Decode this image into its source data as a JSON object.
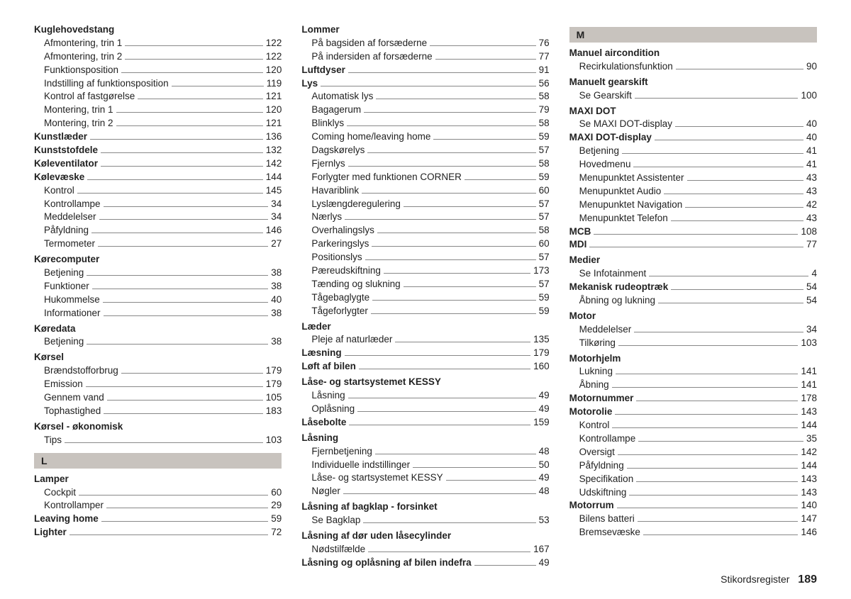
{
  "footer": {
    "title": "Stikordsregister",
    "page": "189"
  },
  "columns": [
    [
      {
        "type": "heading",
        "text": "Kuglehovedstang"
      },
      {
        "type": "sub",
        "label": "Afmontering, trin 1",
        "page": "122"
      },
      {
        "type": "sub",
        "label": "Afmontering, trin 2",
        "page": "122"
      },
      {
        "type": "sub",
        "label": "Funktionsposition",
        "page": "120"
      },
      {
        "type": "sub",
        "label": "Indstilling af funktionsposition",
        "page": "119"
      },
      {
        "type": "sub",
        "label": "Kontrol af fastgørelse",
        "page": "121"
      },
      {
        "type": "sub",
        "label": "Montering, trin 1",
        "page": "120"
      },
      {
        "type": "sub",
        "label": "Montering, trin 2",
        "page": "121"
      },
      {
        "type": "bold",
        "label": "Kunstlæder",
        "page": "136"
      },
      {
        "type": "bold",
        "label": "Kunststofdele",
        "page": "132"
      },
      {
        "type": "bold",
        "label": "Køleventilator",
        "page": "142"
      },
      {
        "type": "bold",
        "label": "Kølevæske",
        "page": "144"
      },
      {
        "type": "sub",
        "label": "Kontrol",
        "page": "145"
      },
      {
        "type": "sub",
        "label": "Kontrollampe",
        "page": "34"
      },
      {
        "type": "sub",
        "label": "Meddelelser",
        "page": "34"
      },
      {
        "type": "sub",
        "label": "Påfyldning",
        "page": "146"
      },
      {
        "type": "sub",
        "label": "Termometer",
        "page": "27"
      },
      {
        "type": "heading",
        "text": "Kørecomputer"
      },
      {
        "type": "sub",
        "label": "Betjening",
        "page": "38"
      },
      {
        "type": "sub",
        "label": "Funktioner",
        "page": "38"
      },
      {
        "type": "sub",
        "label": "Hukommelse",
        "page": "40"
      },
      {
        "type": "sub",
        "label": "Informationer",
        "page": "38"
      },
      {
        "type": "heading",
        "text": "Køredata"
      },
      {
        "type": "sub",
        "label": "Betjening",
        "page": "38"
      },
      {
        "type": "heading",
        "text": "Kørsel"
      },
      {
        "type": "sub",
        "label": "Brændstofforbrug",
        "page": "179"
      },
      {
        "type": "sub",
        "label": "Emission",
        "page": "179"
      },
      {
        "type": "sub",
        "label": "Gennem vand",
        "page": "105"
      },
      {
        "type": "sub",
        "label": "Tophastighed",
        "page": "183"
      },
      {
        "type": "heading",
        "text": "Kørsel - økonomisk"
      },
      {
        "type": "sub",
        "label": "Tips",
        "page": "103"
      },
      {
        "type": "letter",
        "text": "L"
      },
      {
        "type": "heading",
        "text": "Lamper"
      },
      {
        "type": "sub",
        "label": "Cockpit",
        "page": "60"
      },
      {
        "type": "sub",
        "label": "Kontrollamper",
        "page": "29"
      },
      {
        "type": "bold",
        "label": "Leaving home",
        "page": "59"
      },
      {
        "type": "bold",
        "label": "Lighter",
        "page": "72"
      }
    ],
    [
      {
        "type": "heading",
        "text": "Lommer"
      },
      {
        "type": "sub",
        "label": "På bagsiden af forsæderne",
        "page": "76"
      },
      {
        "type": "sub",
        "label": "På indersiden af forsæderne",
        "page": "77"
      },
      {
        "type": "bold",
        "label": "Luftdyser",
        "page": "91"
      },
      {
        "type": "bold",
        "label": "Lys",
        "page": "56"
      },
      {
        "type": "sub",
        "label": "Automatisk lys",
        "page": "58"
      },
      {
        "type": "sub",
        "label": "Bagagerum",
        "page": "79"
      },
      {
        "type": "sub",
        "label": "Blinklys",
        "page": "58"
      },
      {
        "type": "sub",
        "label": "Coming home/leaving home",
        "page": "59"
      },
      {
        "type": "sub",
        "label": "Dagskørelys",
        "page": "57"
      },
      {
        "type": "sub",
        "label": "Fjernlys",
        "page": "58"
      },
      {
        "type": "sub",
        "label": "Forlygter med funktionen CORNER",
        "page": "59"
      },
      {
        "type": "sub",
        "label": "Havariblink",
        "page": "60"
      },
      {
        "type": "sub",
        "label": "Lyslængderegulering",
        "page": "57"
      },
      {
        "type": "sub",
        "label": "Nærlys",
        "page": "57"
      },
      {
        "type": "sub",
        "label": "Overhalingslys",
        "page": "58"
      },
      {
        "type": "sub",
        "label": "Parkeringslys",
        "page": "60"
      },
      {
        "type": "sub",
        "label": "Positionslys",
        "page": "57"
      },
      {
        "type": "sub",
        "label": "Pæreudskiftning",
        "page": "173"
      },
      {
        "type": "sub",
        "label": "Tænding og slukning",
        "page": "57"
      },
      {
        "type": "sub",
        "label": "Tågebaglygte",
        "page": "59"
      },
      {
        "type": "sub",
        "label": "Tågeforlygter",
        "page": "59"
      },
      {
        "type": "heading",
        "text": "Læder"
      },
      {
        "type": "sub",
        "label": "Pleje af naturlæder",
        "page": "135"
      },
      {
        "type": "bold",
        "label": "Læsning",
        "page": "179"
      },
      {
        "type": "bold",
        "label": "Løft af bilen",
        "page": "160"
      },
      {
        "type": "heading",
        "text": "Låse- og startsystemet KESSY"
      },
      {
        "type": "sub",
        "label": "Låsning",
        "page": "49"
      },
      {
        "type": "sub",
        "label": "Oplåsning",
        "page": "49"
      },
      {
        "type": "bold",
        "label": "Låsebolte",
        "page": "159"
      },
      {
        "type": "heading",
        "text": "Låsning"
      },
      {
        "type": "sub",
        "label": "Fjernbetjening",
        "page": "48"
      },
      {
        "type": "sub",
        "label": "Individuelle indstillinger",
        "page": "50"
      },
      {
        "type": "sub",
        "label": "Låse- og startsystemet KESSY",
        "page": "49"
      },
      {
        "type": "sub",
        "label": "Nøgler",
        "page": "48"
      },
      {
        "type": "heading",
        "text": "Låsning af bagklap - forsinket"
      },
      {
        "type": "sub",
        "label": "Se Bagklap",
        "page": "53"
      },
      {
        "type": "heading",
        "text": "Låsning af dør uden låsecylinder"
      },
      {
        "type": "sub",
        "label": "Nødstilfælde",
        "page": "167"
      },
      {
        "type": "bold",
        "label": "Låsning og oplåsning af bilen indefra",
        "page": "49"
      }
    ],
    [
      {
        "type": "letter",
        "text": "M"
      },
      {
        "type": "heading",
        "text": "Manuel aircondition"
      },
      {
        "type": "sub",
        "label": "Recirkulationsfunktion",
        "page": "90"
      },
      {
        "type": "heading",
        "text": "Manuelt gearskift"
      },
      {
        "type": "sub",
        "label": "Se Gearskift",
        "page": "100"
      },
      {
        "type": "heading",
        "text": "MAXI DOT"
      },
      {
        "type": "sub",
        "label": "Se MAXI DOT-display",
        "page": "40"
      },
      {
        "type": "bold",
        "label": "MAXI DOT-display",
        "page": "40"
      },
      {
        "type": "sub",
        "label": "Betjening",
        "page": "41"
      },
      {
        "type": "sub",
        "label": "Hovedmenu",
        "page": "41"
      },
      {
        "type": "sub",
        "label": "Menupunktet Assistenter",
        "page": "43"
      },
      {
        "type": "sub",
        "label": "Menupunktet Audio",
        "page": "43"
      },
      {
        "type": "sub",
        "label": "Menupunktet Navigation",
        "page": "42"
      },
      {
        "type": "sub",
        "label": "Menupunktet Telefon",
        "page": "43"
      },
      {
        "type": "bold",
        "label": "MCB",
        "page": "108"
      },
      {
        "type": "bold",
        "label": "MDI",
        "page": "77"
      },
      {
        "type": "heading",
        "text": "Medier"
      },
      {
        "type": "sub",
        "label": "Se Infotainment",
        "page": "4"
      },
      {
        "type": "bold",
        "label": "Mekanisk rudeoptræk",
        "page": "54"
      },
      {
        "type": "sub",
        "label": "Åbning og lukning",
        "page": "54"
      },
      {
        "type": "heading",
        "text": "Motor"
      },
      {
        "type": "sub",
        "label": "Meddelelser",
        "page": "34"
      },
      {
        "type": "sub",
        "label": "Tilkøring",
        "page": "103"
      },
      {
        "type": "heading",
        "text": "Motorhjelm"
      },
      {
        "type": "sub",
        "label": "Lukning",
        "page": "141"
      },
      {
        "type": "sub",
        "label": "Åbning",
        "page": "141"
      },
      {
        "type": "bold",
        "label": "Motornummer",
        "page": "178"
      },
      {
        "type": "bold",
        "label": "Motorolie",
        "page": "143"
      },
      {
        "type": "sub",
        "label": "Kontrol",
        "page": "144"
      },
      {
        "type": "sub",
        "label": "Kontrollampe",
        "page": "35"
      },
      {
        "type": "sub",
        "label": "Oversigt",
        "page": "142"
      },
      {
        "type": "sub",
        "label": "Påfyldning",
        "page": "144"
      },
      {
        "type": "sub",
        "label": "Specifikation",
        "page": "143"
      },
      {
        "type": "sub",
        "label": "Udskiftning",
        "page": "143"
      },
      {
        "type": "bold",
        "label": "Motorrum",
        "page": "140"
      },
      {
        "type": "sub",
        "label": "Bilens batteri",
        "page": "147"
      },
      {
        "type": "sub",
        "label": "Bremsevæske",
        "page": "146"
      }
    ]
  ]
}
